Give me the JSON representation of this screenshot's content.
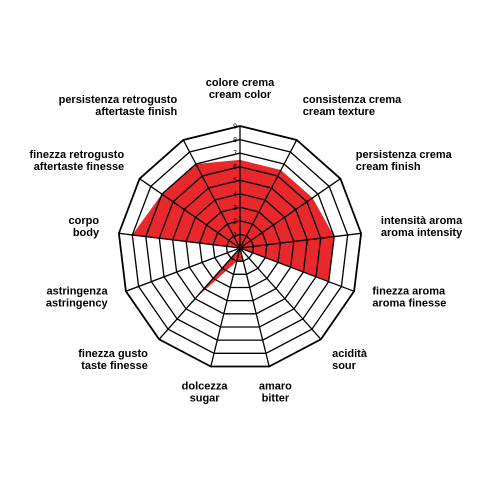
{
  "chart_data": {
    "type": "radar",
    "axes": [
      {
        "it": "colore crema",
        "en": "cream color"
      },
      {
        "it": "consistenza crema",
        "en": "cream texture"
      },
      {
        "it": "persistenza crema",
        "en": "cream finish"
      },
      {
        "it": "intensità aroma",
        "en": "aroma intensity"
      },
      {
        "it": "finezza aroma",
        "en": "aroma finesse"
      },
      {
        "it": "acidità",
        "en": "sour"
      },
      {
        "it": "amaro",
        "en": "bitter"
      },
      {
        "it": "dolcezza",
        "en": "sugar"
      },
      {
        "it": "finezza gusto",
        "en": "taste finesse"
      },
      {
        "it": "astringenza",
        "en": "astringency"
      },
      {
        "it": "corpo",
        "en": "body"
      },
      {
        "it": "finezza retrogusto",
        "en": "aftertaste finesse"
      },
      {
        "it": "persistenza retrogusto",
        "en": "aftertaste finish"
      }
    ],
    "values": [
      6.5,
      6.5,
      6.5,
      7,
      7,
      0,
      1,
      1,
      5,
      0,
      8,
      7,
      7
    ],
    "range": [
      0,
      9
    ],
    "ticks": [
      "1",
      "2",
      "3",
      "4",
      "5",
      "6",
      "7",
      "8",
      "9"
    ],
    "series_color": "#e8282b"
  }
}
